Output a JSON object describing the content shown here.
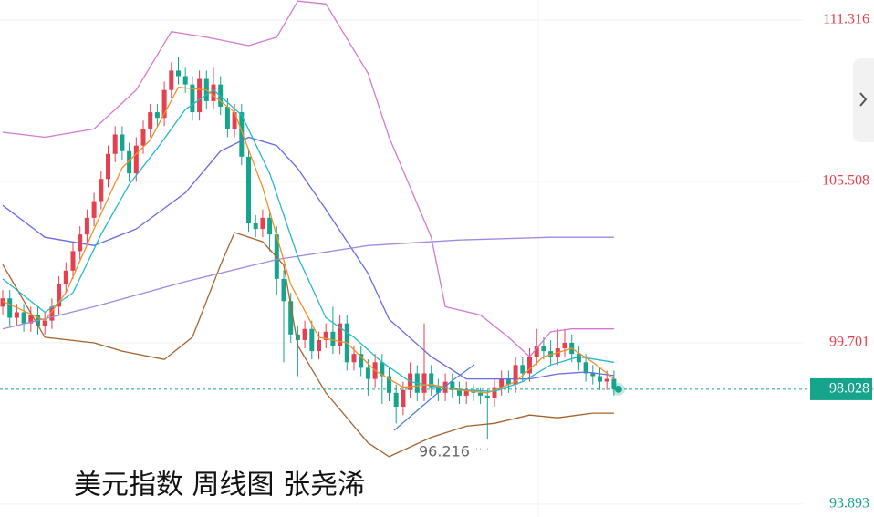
{
  "chart_data": {
    "type": "candlestick",
    "title": "美元指数 周线图 张尧浠",
    "open": [
      101.0,
      101.3,
      100.6,
      100.8,
      100.4,
      100.7,
      100.3,
      100.5,
      101.0,
      101.8,
      102.3,
      103.0,
      103.6,
      104.2,
      104.8,
      105.6,
      106.5,
      107.2,
      106.6,
      105.8,
      106.8,
      107.4,
      108.0,
      107.8,
      108.8,
      109.5,
      109.3,
      109.0,
      108.0,
      109.2,
      108.4,
      109.0,
      108.2,
      107.4,
      108.0,
      106.4,
      104.0,
      103.8,
      104.2,
      103.6,
      102.0,
      101.2,
      100.0,
      99.8,
      100.2,
      99.4,
      99.8,
      100.1,
      99.6,
      100.4,
      99.0,
      99.3,
      98.8,
      98.4,
      99.0,
      98.5,
      97.9,
      97.4,
      98.0,
      98.6,
      97.9,
      98.6,
      98.1,
      97.9,
      98.3,
      98.0,
      97.8,
      98.0,
      97.9,
      97.8,
      97.7,
      98.1,
      98.4,
      98.2,
      98.9,
      98.6,
      99.2,
      99.6,
      99.4,
      99.2,
      99.5,
      99.7,
      99.3,
      99.0,
      98.6,
      98.5,
      98.3,
      98.4
    ],
    "high": [
      101.6,
      101.6,
      101.1,
      101.1,
      101.0,
      101.0,
      100.8,
      101.3,
      102.1,
      102.6,
      103.3,
      103.9,
      104.5,
      105.1,
      105.9,
      106.8,
      107.5,
      107.5,
      106.9,
      107.1,
      107.7,
      108.3,
      108.3,
      109.1,
      109.8,
      110.0,
      109.6,
      109.3,
      109.5,
      109.5,
      109.6,
      109.3,
      108.5,
      108.3,
      108.3,
      106.7,
      104.3,
      104.5,
      104.5,
      103.9,
      102.3,
      101.5,
      100.3,
      100.5,
      100.5,
      100.1,
      100.4,
      101.0,
      100.7,
      100.7,
      99.6,
      99.6,
      99.1,
      99.3,
      99.3,
      98.8,
      98.2,
      98.3,
      99.0,
      98.9,
      100.4,
      98.9,
      98.4,
      98.6,
      98.6,
      98.3,
      98.3,
      98.2,
      98.1,
      98.0,
      98.4,
      98.7,
      98.7,
      99.2,
      99.2,
      99.5,
      100.2,
      99.9,
      99.8,
      100.2,
      100.2,
      100.0,
      99.6,
      99.3,
      98.9,
      98.8,
      98.7,
      98.7
    ],
    "low": [
      100.7,
      100.3,
      100.3,
      100.1,
      100.1,
      100.0,
      100.0,
      100.2,
      100.7,
      101.5,
      102.0,
      102.7,
      103.3,
      103.9,
      104.5,
      105.3,
      106.2,
      106.3,
      105.5,
      105.5,
      106.5,
      107.1,
      107.5,
      107.5,
      108.5,
      109.0,
      108.7,
      107.7,
      107.7,
      108.1,
      108.1,
      107.9,
      107.1,
      107.1,
      106.1,
      103.7,
      103.5,
      103.5,
      103.0,
      101.4,
      99.0,
      99.7,
      98.5,
      99.5,
      99.1,
      99.1,
      99.5,
      99.3,
      99.3,
      98.7,
      98.7,
      98.5,
      97.8,
      98.1,
      97.5,
      97.6,
      96.8,
      97.1,
      97.7,
      97.6,
      97.6,
      97.8,
      97.6,
      97.6,
      97.7,
      97.5,
      97.5,
      97.6,
      97.5,
      96.216,
      97.4,
      97.8,
      97.9,
      97.9,
      98.3,
      98.3,
      98.9,
      99.1,
      98.9,
      98.9,
      99.2,
      99.0,
      98.7,
      98.3,
      98.2,
      98.0,
      98.0,
      97.8
    ],
    "close": [
      101.3,
      100.6,
      100.8,
      100.4,
      100.7,
      100.3,
      100.5,
      101.0,
      101.8,
      102.3,
      103.0,
      103.6,
      104.2,
      104.8,
      105.6,
      106.5,
      107.2,
      106.6,
      105.8,
      106.8,
      107.4,
      108.0,
      107.8,
      108.8,
      109.5,
      109.3,
      109.0,
      108.0,
      109.2,
      108.4,
      109.0,
      108.2,
      107.4,
      108.0,
      106.4,
      104.0,
      103.8,
      104.2,
      103.6,
      102.0,
      101.2,
      100.0,
      99.8,
      100.2,
      99.4,
      99.8,
      100.1,
      99.6,
      100.4,
      99.0,
      99.3,
      98.8,
      98.4,
      99.0,
      98.5,
      97.9,
      97.4,
      98.0,
      98.6,
      97.9,
      98.6,
      98.1,
      97.9,
      98.3,
      98.0,
      97.8,
      98.0,
      97.9,
      97.8,
      97.7,
      98.1,
      98.4,
      98.2,
      98.9,
      98.6,
      99.2,
      99.6,
      99.4,
      99.2,
      99.5,
      99.7,
      99.3,
      99.0,
      98.6,
      98.5,
      98.3,
      98.4,
      98.028
    ],
    "up_color": "#e5404f",
    "down_color": "#16a58c",
    "ylim": [
      93.43,
      112.04
    ],
    "yticks": [
      93.893,
      99.701,
      105.508,
      111.316
    ],
    "grid": true,
    "last_price": 98.028,
    "low_annotation": 96.216,
    "lines": [
      {
        "color": "#d57ad0",
        "x": [
          0,
          6,
          13,
          19,
          24,
          29,
          35,
          39,
          42,
          46,
          52,
          55,
          61,
          63,
          68,
          72,
          75,
          78,
          81,
          87
        ],
        "values": [
          107.28,
          107.1,
          107.4,
          108.8,
          110.9,
          110.7,
          110.4,
          110.7,
          112.0,
          111.9,
          109.4,
          107.1,
          103.5,
          101.0,
          100.7,
          99.9,
          99.2,
          100.1,
          100.2,
          100.2
        ]
      },
      {
        "color": "#6a6ae0",
        "x": [
          0,
          6,
          13,
          19,
          26,
          31,
          35,
          39,
          42,
          46,
          52,
          55,
          61,
          66,
          71,
          75,
          79,
          83,
          87
        ],
        "values": [
          104.65,
          103.5,
          103.2,
          103.8,
          105.1,
          106.6,
          107.1,
          106.8,
          105.97,
          104.5,
          102.2,
          100.55,
          99.2,
          98.4,
          98.4,
          98.4,
          98.58,
          98.65,
          98.52
        ]
      },
      {
        "color": "#a5632e",
        "x": [
          0,
          6,
          13,
          17,
          23,
          27,
          31,
          33,
          37,
          40,
          42,
          46,
          52,
          55,
          61,
          66,
          70,
          75,
          79,
          84,
          87
        ],
        "values": [
          102.52,
          99.9,
          99.7,
          99.4,
          99.1,
          99.9,
          102.5,
          103.67,
          103.34,
          102.5,
          99.6,
          97.9,
          96.1,
          95.6,
          96.3,
          96.7,
          96.8,
          97.1,
          97.0,
          97.17,
          97.17
        ]
      },
      {
        "color": "#a08ae0",
        "x": [
          0,
          13,
          26,
          39,
          52,
          65,
          78,
          87
        ],
        "values": [
          100.2,
          101.0,
          101.9,
          102.7,
          103.2,
          103.4,
          103.5,
          103.5
        ]
      },
      {
        "color": "#24b8c9",
        "x": [
          0,
          6,
          10,
          14,
          18,
          22,
          26,
          30,
          34,
          38,
          42,
          46,
          50,
          54,
          58,
          62,
          66,
          70,
          74,
          78,
          82,
          87
        ],
        "values": [
          102.0,
          100.8,
          101.5,
          103.6,
          105.4,
          106.7,
          108.1,
          108.8,
          107.9,
          105.8,
          102.8,
          100.6,
          99.9,
          99.0,
          98.3,
          98.1,
          98.0,
          97.95,
          98.3,
          98.9,
          99.2,
          99.0
        ]
      },
      {
        "color": "#f0902a",
        "x": [
          0,
          6,
          9,
          13,
          17,
          21,
          25,
          29,
          33,
          37,
          41,
          45,
          49,
          53,
          57,
          61,
          65,
          69,
          73,
          77,
          81,
          84,
          87
        ],
        "values": [
          101.2,
          100.5,
          101.5,
          103.8,
          106.0,
          107.0,
          108.9,
          108.8,
          108.0,
          105.3,
          101.8,
          99.9,
          99.7,
          98.7,
          98.1,
          98.2,
          98.0,
          97.9,
          98.3,
          99.2,
          99.5,
          99.0,
          98.4
        ]
      }
    ]
  }
}
